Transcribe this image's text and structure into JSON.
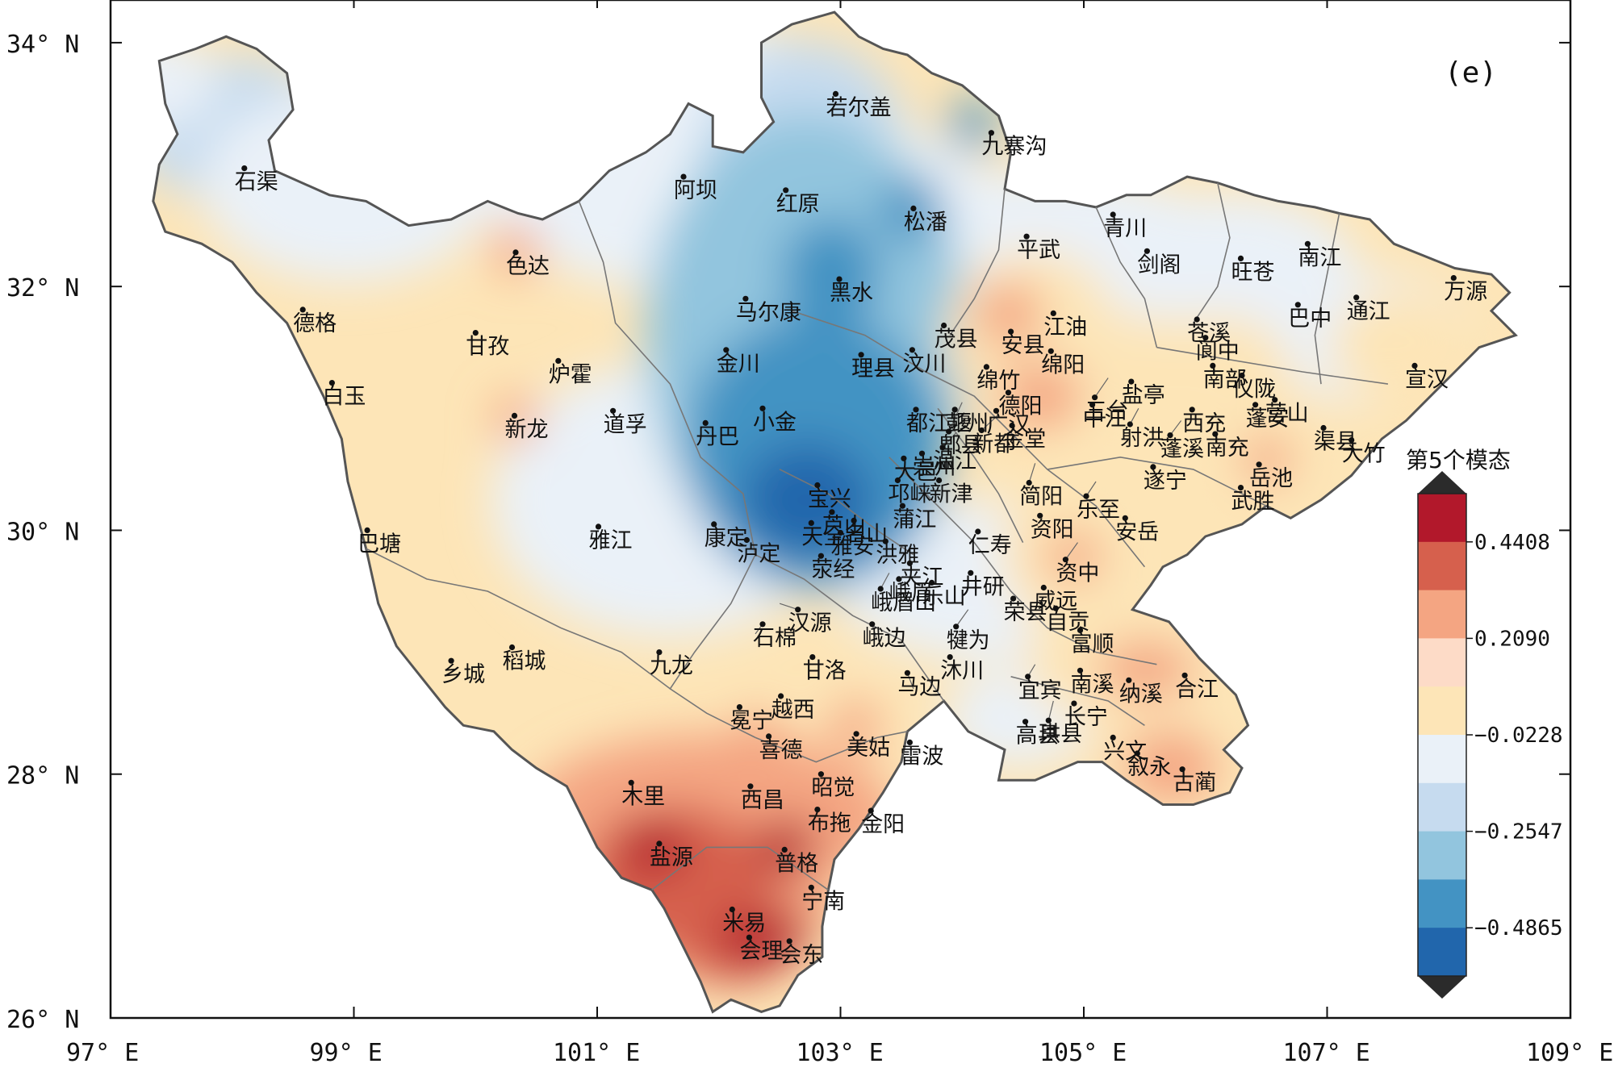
{
  "panel_label": "(e)",
  "lon_ticks": [
    "97° E",
    "99° E",
    "101° E",
    "103° E",
    "105° E",
    "107° E",
    "109° E"
  ],
  "lat_ticks": [
    "26° N",
    "28° N",
    "30° N",
    "32° N",
    "34° N"
  ],
  "colorbar": {
    "title": "第5个模态",
    "tick_labels": [
      "0.4408",
      "0.2090",
      "−0.0228",
      "−0.2547",
      "−0.4865"
    ],
    "colors": [
      "#b2182b",
      "#d6604d",
      "#f4a582",
      "#fddbc7",
      "#fde5b7",
      "#eaf1f8",
      "#c6dbef",
      "#92c5de",
      "#4393c3",
      "#2166ac"
    ],
    "over_color": "#2b2b2b",
    "under_color": "#2b2b2b"
  },
  "colors": {
    "outline": "#555555",
    "station": "#111111"
  },
  "cities": [
    {
      "name": "石渠",
      "lon": 98.1,
      "lat": 32.97
    },
    {
      "name": "色达",
      "lon": 100.33,
      "lat": 32.28
    },
    {
      "name": "德格",
      "lon": 98.58,
      "lat": 31.81
    },
    {
      "name": "甘孜",
      "lon": 100.0,
      "lat": 31.62
    },
    {
      "name": "炉霍",
      "lon": 100.68,
      "lat": 31.39
    },
    {
      "name": "白玉",
      "lon": 98.82,
      "lat": 31.21
    },
    {
      "name": "新龙",
      "lon": 100.32,
      "lat": 30.94
    },
    {
      "name": "道孚",
      "lon": 101.13,
      "lat": 30.98
    },
    {
      "name": "巴塘",
      "lon": 99.11,
      "lat": 30.0
    },
    {
      "name": "雅江",
      "lon": 101.01,
      "lat": 30.03
    },
    {
      "name": "康定",
      "lon": 101.96,
      "lat": 30.05
    },
    {
      "name": "丹巴",
      "lon": 101.89,
      "lat": 30.88
    },
    {
      "name": "乡城",
      "lon": 99.8,
      "lat": 28.93
    },
    {
      "name": "稻城",
      "lon": 100.3,
      "lat": 29.04
    },
    {
      "name": "九龙",
      "lon": 101.51,
      "lat": 29.0
    },
    {
      "name": "若尔盖",
      "lon": 102.96,
      "lat": 33.58
    },
    {
      "name": "阿坝",
      "lon": 101.71,
      "lat": 32.9
    },
    {
      "name": "红原",
      "lon": 102.55,
      "lat": 32.79
    },
    {
      "name": "九寨沟",
      "lon": 104.24,
      "lat": 33.26
    },
    {
      "name": "松潘",
      "lon": 103.6,
      "lat": 32.64
    },
    {
      "name": "黑水",
      "lon": 102.99,
      "lat": 32.06
    },
    {
      "name": "马尔康",
      "lon": 102.22,
      "lat": 31.9
    },
    {
      "name": "金川",
      "lon": 102.06,
      "lat": 31.48
    },
    {
      "name": "小金",
      "lon": 102.36,
      "lat": 31.0
    },
    {
      "name": "汶川",
      "lon": 103.59,
      "lat": 31.48
    },
    {
      "name": "茂县",
      "lon": 103.85,
      "lat": 31.68
    },
    {
      "name": "理县",
      "lon": 103.17,
      "lat": 31.44
    },
    {
      "name": "平武",
      "lon": 104.53,
      "lat": 32.41
    },
    {
      "name": "青川",
      "lon": 105.24,
      "lat": 32.59
    },
    {
      "name": "剑阁",
      "lon": 105.52,
      "lat": 32.29
    },
    {
      "name": "旺苍",
      "lon": 106.29,
      "lat": 32.23
    },
    {
      "name": "南江",
      "lon": 106.84,
      "lat": 32.35
    },
    {
      "name": "巴中",
      "lon": 106.76,
      "lat": 31.85
    },
    {
      "name": "通江",
      "lon": 107.24,
      "lat": 31.91
    },
    {
      "name": "万源",
      "lon": 108.04,
      "lat": 32.07
    },
    {
      "name": "安县",
      "lon": 104.4,
      "lat": 31.63
    },
    {
      "name": "江油",
      "lon": 104.75,
      "lat": 31.78
    },
    {
      "name": "苍溪",
      "lon": 105.93,
      "lat": 31.73
    },
    {
      "name": "阆中",
      "lon": 106.0,
      "lat": 31.58
    },
    {
      "name": "绵竹",
      "lon": 104.2,
      "lat": 31.34
    },
    {
      "name": "绵阳",
      "lon": 104.73,
      "lat": 31.47
    },
    {
      "name": "德阳",
      "lon": 104.38,
      "lat": 31.13
    },
    {
      "name": "盐亭",
      "lon": 105.39,
      "lat": 31.22
    },
    {
      "name": "仪陇",
      "lon": 106.3,
      "lat": 31.27
    },
    {
      "name": "宣汉",
      "lon": 107.72,
      "lat": 31.35
    },
    {
      "name": "都江堰",
      "lon": 103.62,
      "lat": 30.99
    },
    {
      "name": "彭州",
      "lon": 103.94,
      "lat": 30.99
    },
    {
      "name": "广汉",
      "lon": 104.28,
      "lat": 30.98
    },
    {
      "name": "中江",
      "lon": 105.07,
      "lat": 31.03
    },
    {
      "name": "三台",
      "lon": 105.09,
      "lat": 31.09
    },
    {
      "name": "南部",
      "lon": 106.06,
      "lat": 31.35
    },
    {
      "name": "西充",
      "lon": 105.89,
      "lat": 30.99
    },
    {
      "name": "营山",
      "lon": 106.57,
      "lat": 31.07
    },
    {
      "name": "南充",
      "lon": 106.08,
      "lat": 30.79
    },
    {
      "name": "渠县",
      "lon": 106.97,
      "lat": 30.84
    },
    {
      "name": "郫县",
      "lon": 103.89,
      "lat": 30.81
    },
    {
      "name": "崇州",
      "lon": 103.67,
      "lat": 30.63
    },
    {
      "name": "宝兴",
      "lon": 102.81,
      "lat": 30.37
    },
    {
      "name": "大邑",
      "lon": 103.52,
      "lat": 30.59
    },
    {
      "name": "温江",
      "lon": 103.84,
      "lat": 30.68
    },
    {
      "name": "新都",
      "lon": 104.16,
      "lat": 30.82
    },
    {
      "name": "金堂",
      "lon": 104.41,
      "lat": 30.86
    },
    {
      "name": "射洪",
      "lon": 105.38,
      "lat": 30.87
    },
    {
      "name": "蓬溪",
      "lon": 105.71,
      "lat": 30.78
    },
    {
      "name": "蓬安",
      "lon": 106.41,
      "lat": 31.03
    },
    {
      "name": "大竹",
      "lon": 107.2,
      "lat": 30.74
    },
    {
      "name": "芦山",
      "lon": 102.93,
      "lat": 30.15
    },
    {
      "name": "名山",
      "lon": 103.11,
      "lat": 30.08
    },
    {
      "name": "邛崃",
      "lon": 103.47,
      "lat": 30.41
    },
    {
      "name": "新津",
      "lon": 103.81,
      "lat": 30.41
    },
    {
      "name": "简阳",
      "lon": 104.55,
      "lat": 30.39
    },
    {
      "name": "资阳",
      "lon": 104.64,
      "lat": 30.12
    },
    {
      "name": "乐至",
      "lon": 105.02,
      "lat": 30.28
    },
    {
      "name": "遂宁",
      "lon": 105.57,
      "lat": 30.52
    },
    {
      "name": "武胜",
      "lon": 106.29,
      "lat": 30.35
    },
    {
      "name": "岳池",
      "lon": 106.44,
      "lat": 30.54
    },
    {
      "name": "天全",
      "lon": 102.76,
      "lat": 30.06
    },
    {
      "name": "雅安",
      "lon": 103.0,
      "lat": 29.98
    },
    {
      "name": "洪雅",
      "lon": 103.37,
      "lat": 29.91
    },
    {
      "name": "蒲江",
      "lon": 103.51,
      "lat": 30.2
    },
    {
      "name": "仁寿",
      "lon": 104.13,
      "lat": 29.99
    },
    {
      "name": "资中",
      "lon": 104.85,
      "lat": 29.76
    },
    {
      "name": "安岳",
      "lon": 105.34,
      "lat": 30.1
    },
    {
      "name": "泸定",
      "lon": 102.23,
      "lat": 29.92
    },
    {
      "name": "荥经",
      "lon": 102.84,
      "lat": 29.79
    },
    {
      "name": "峨眉",
      "lon": 103.48,
      "lat": 29.6
    },
    {
      "name": "夹江",
      "lon": 103.57,
      "lat": 29.73
    },
    {
      "name": "井研",
      "lon": 104.07,
      "lat": 29.65
    },
    {
      "name": "威远",
      "lon": 104.67,
      "lat": 29.53
    },
    {
      "name": "荣县",
      "lon": 104.42,
      "lat": 29.44
    },
    {
      "name": "汉源",
      "lon": 102.65,
      "lat": 29.35
    },
    {
      "name": "峨眉山",
      "lon": 103.33,
      "lat": 29.52
    },
    {
      "name": "自贡",
      "lon": 104.77,
      "lat": 29.36
    },
    {
      "name": "石棉",
      "lon": 102.36,
      "lat": 29.23
    },
    {
      "name": "犍为",
      "lon": 103.95,
      "lat": 29.21
    },
    {
      "name": "宜宾",
      "lon": 104.54,
      "lat": 28.8
    },
    {
      "name": "富顺",
      "lon": 104.97,
      "lat": 29.18
    },
    {
      "name": "甘洛",
      "lon": 102.77,
      "lat": 28.96
    },
    {
      "name": "峨边",
      "lon": 103.26,
      "lat": 29.23
    },
    {
      "name": "乐山",
      "lon": 103.75,
      "lat": 29.57
    },
    {
      "name": "沐川",
      "lon": 103.9,
      "lat": 28.96
    },
    {
      "name": "南溪",
      "lon": 104.97,
      "lat": 28.85
    },
    {
      "name": "合江",
      "lon": 105.83,
      "lat": 28.81
    },
    {
      "name": "纳溪",
      "lon": 105.37,
      "lat": 28.77
    },
    {
      "name": "冕宁",
      "lon": 102.17,
      "lat": 28.55
    },
    {
      "name": "越西",
      "lon": 102.51,
      "lat": 28.64
    },
    {
      "name": "马边",
      "lon": 103.55,
      "lat": 28.83
    },
    {
      "name": "高县",
      "lon": 104.52,
      "lat": 28.43
    },
    {
      "name": "长宁",
      "lon": 104.92,
      "lat": 28.58
    },
    {
      "name": "兴文",
      "lon": 105.24,
      "lat": 28.3
    },
    {
      "name": "美姑",
      "lon": 103.13,
      "lat": 28.33
    },
    {
      "name": "喜德",
      "lon": 102.41,
      "lat": 28.31
    },
    {
      "name": "雷波",
      "lon": 103.57,
      "lat": 28.26
    },
    {
      "name": "珙县",
      "lon": 104.71,
      "lat": 28.44
    },
    {
      "name": "叙永",
      "lon": 105.44,
      "lat": 28.17
    },
    {
      "name": "古蔺",
      "lon": 105.81,
      "lat": 28.04
    },
    {
      "name": "木里",
      "lon": 101.28,
      "lat": 27.93
    },
    {
      "name": "西昌",
      "lon": 102.26,
      "lat": 27.9
    },
    {
      "name": "昭觉",
      "lon": 102.84,
      "lat": 28.0
    },
    {
      "name": "布拖",
      "lon": 102.81,
      "lat": 27.71
    },
    {
      "name": "金阳",
      "lon": 103.25,
      "lat": 27.7
    },
    {
      "name": "盐源",
      "lon": 101.51,
      "lat": 27.43
    },
    {
      "name": "普格",
      "lon": 102.54,
      "lat": 27.38
    },
    {
      "name": "宁南",
      "lon": 102.76,
      "lat": 27.07
    },
    {
      "name": "米易",
      "lon": 102.11,
      "lat": 26.89
    },
    {
      "name": "会理",
      "lon": 102.25,
      "lat": 26.66
    },
    {
      "name": "会东",
      "lon": 102.58,
      "lat": 26.63
    }
  ]
}
